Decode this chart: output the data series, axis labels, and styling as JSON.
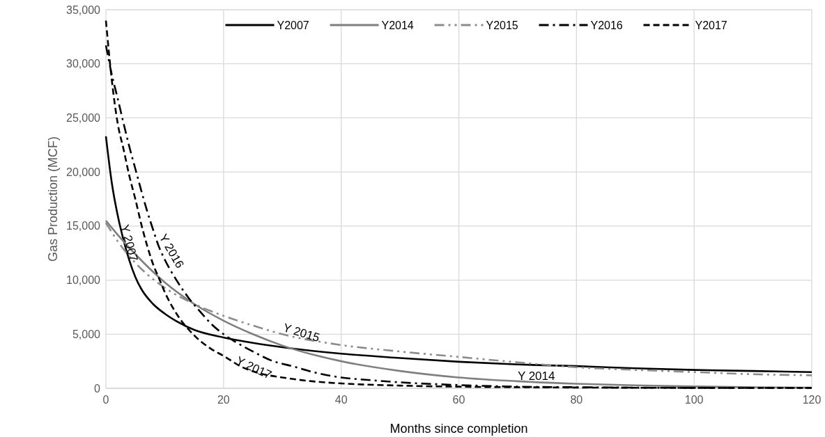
{
  "chart_data": {
    "type": "line",
    "xlabel": "Months since completion",
    "ylabel": "Gas Production (MCF)",
    "xlim": [
      0,
      120
    ],
    "xticks": [
      0,
      20,
      40,
      60,
      80,
      100,
      120
    ],
    "ylim": [
      0,
      35000
    ],
    "yticks": [
      {
        "value": 0,
        "label": "0"
      },
      {
        "value": 5000,
        "label": "5,000"
      },
      {
        "value": 10000,
        "label": "10,000"
      },
      {
        "value": 15000,
        "label": "15,000"
      },
      {
        "value": 20000,
        "label": "20,000"
      },
      {
        "value": 25000,
        "label": "25,000"
      },
      {
        "value": 30000,
        "label": "30,000"
      },
      {
        "value": 35000,
        "label": "35,000"
      }
    ],
    "grid": true,
    "legend": "top",
    "series": [
      {
        "name": "Y2007",
        "color": "#000000",
        "line_style": "solid",
        "x": [
          0,
          1,
          2,
          3,
          4,
          5,
          6,
          8,
          10,
          12,
          15,
          20,
          25,
          30,
          40,
          50,
          60,
          70,
          80,
          90,
          100,
          110,
          120
        ],
        "values": [
          23300,
          19000,
          16000,
          13700,
          11800,
          10300,
          9200,
          7800,
          6900,
          6200,
          5400,
          4700,
          4200,
          3800,
          3200,
          2800,
          2450,
          2200,
          2050,
          1850,
          1700,
          1600,
          1500
        ]
      },
      {
        "name": "Y2014",
        "color": "#7f7f7f",
        "line_style": "solid",
        "x": [
          0,
          2,
          5,
          10,
          15,
          20,
          25,
          30,
          40,
          50,
          60,
          70,
          80,
          90,
          100,
          110,
          120
        ],
        "values": [
          15500,
          14200,
          12400,
          9800,
          7800,
          6250,
          5000,
          3950,
          2500,
          1600,
          1000,
          650,
          420,
          270,
          170,
          100,
          60
        ]
      },
      {
        "name": "Y2015",
        "color": "#8c8c8c",
        "line_style": "dashdotdot",
        "x": [
          0,
          2,
          5,
          10,
          15,
          20,
          25,
          30,
          40,
          50,
          60,
          70,
          80,
          90,
          100,
          110,
          120
        ],
        "values": [
          15300,
          13600,
          11600,
          9300,
          7800,
          6700,
          5800,
          5000,
          4000,
          3400,
          2900,
          2400,
          1950,
          1700,
          1500,
          1300,
          1200
        ]
      },
      {
        "name": "Y2016",
        "color": "#000000",
        "line_style": "dashdot",
        "x": [
          0,
          1,
          2,
          3,
          4,
          5,
          6,
          7,
          8,
          9,
          10,
          12,
          14,
          16,
          18,
          20,
          22,
          25,
          28,
          32,
          36,
          40,
          45,
          50,
          60,
          70,
          80,
          90,
          100,
          120
        ],
        "values": [
          31700,
          29000,
          26800,
          24500,
          22300,
          20300,
          18300,
          16400,
          14700,
          13100,
          11900,
          10000,
          8400,
          7100,
          5900,
          5000,
          4300,
          3400,
          2600,
          2000,
          1400,
          1000,
          750,
          550,
          300,
          150,
          100,
          60,
          40,
          30
        ]
      },
      {
        "name": "Y2017",
        "color": "#000000",
        "line_style": "dashed",
        "x": [
          0,
          1,
          2,
          3,
          4,
          5,
          6,
          7,
          8,
          9,
          10,
          12,
          15,
          18,
          20,
          23,
          26,
          30,
          35,
          40,
          50,
          60,
          70,
          80,
          100,
          120
        ],
        "values": [
          34000,
          28500,
          24500,
          22100,
          19600,
          17500,
          15200,
          13200,
          11500,
          10200,
          8900,
          6900,
          4900,
          3600,
          3000,
          2000,
          1400,
          1000,
          650,
          450,
          250,
          150,
          100,
          70,
          40,
          30
        ]
      }
    ],
    "annotations": [
      {
        "text": "Y 2007",
        "x": 2.5,
        "y": 15000
      },
      {
        "text": "Y 2016",
        "x": 9,
        "y": 14000
      },
      {
        "text": "Y 2015",
        "x": 30,
        "y": 5300
      },
      {
        "text": "Y 2017",
        "x": 22,
        "y": 2300
      },
      {
        "text": "Y 2014",
        "x": 70,
        "y": 800
      }
    ]
  }
}
